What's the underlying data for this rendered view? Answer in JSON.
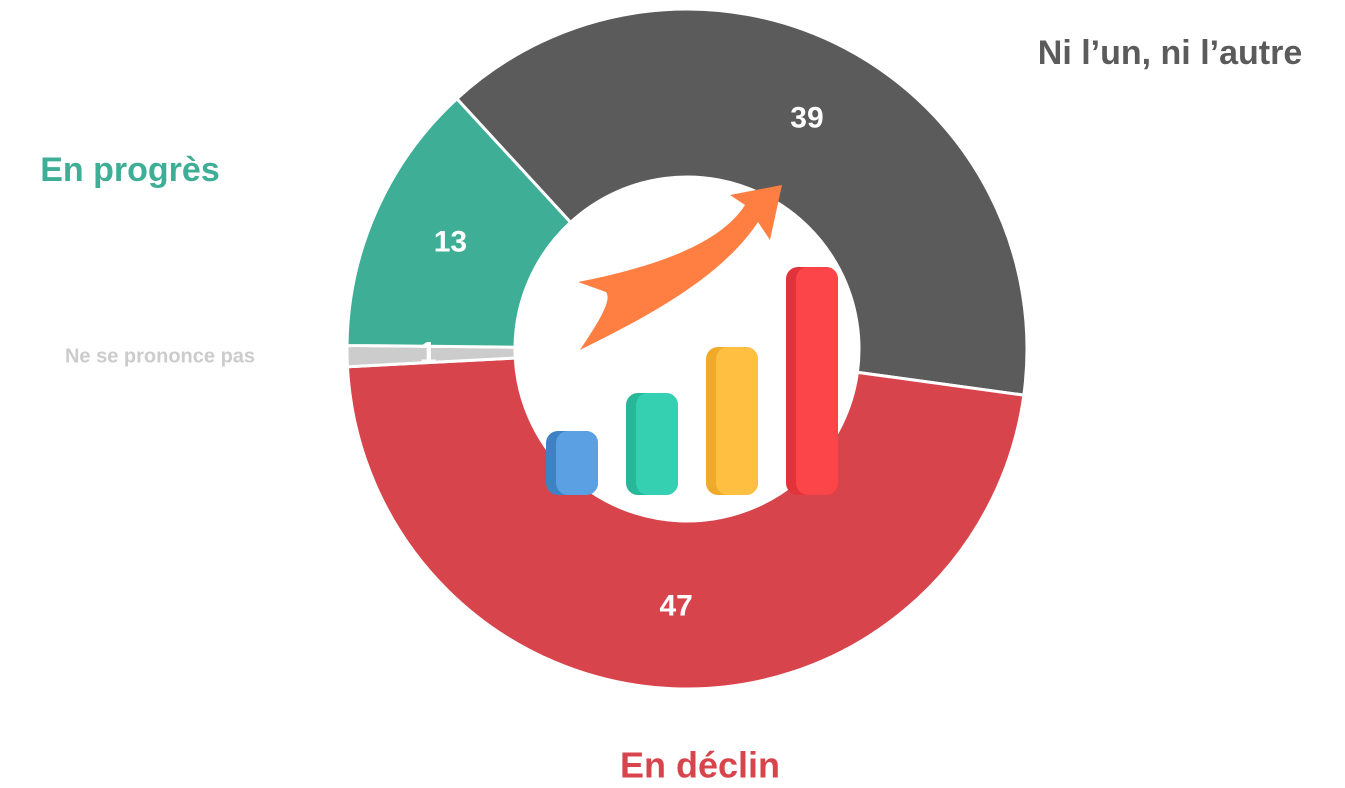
{
  "chart_data": {
    "type": "pie",
    "categories": [
      "Ni l’un, ni l’autre",
      "En déclin",
      "Ne se prononce pas",
      "En progrès"
    ],
    "values": [
      39,
      47,
      1,
      13
    ],
    "colors": [
      "#5b5b5b",
      "#d8444b",
      "#cccccc",
      "#3fae96"
    ],
    "donut": true
  }
}
